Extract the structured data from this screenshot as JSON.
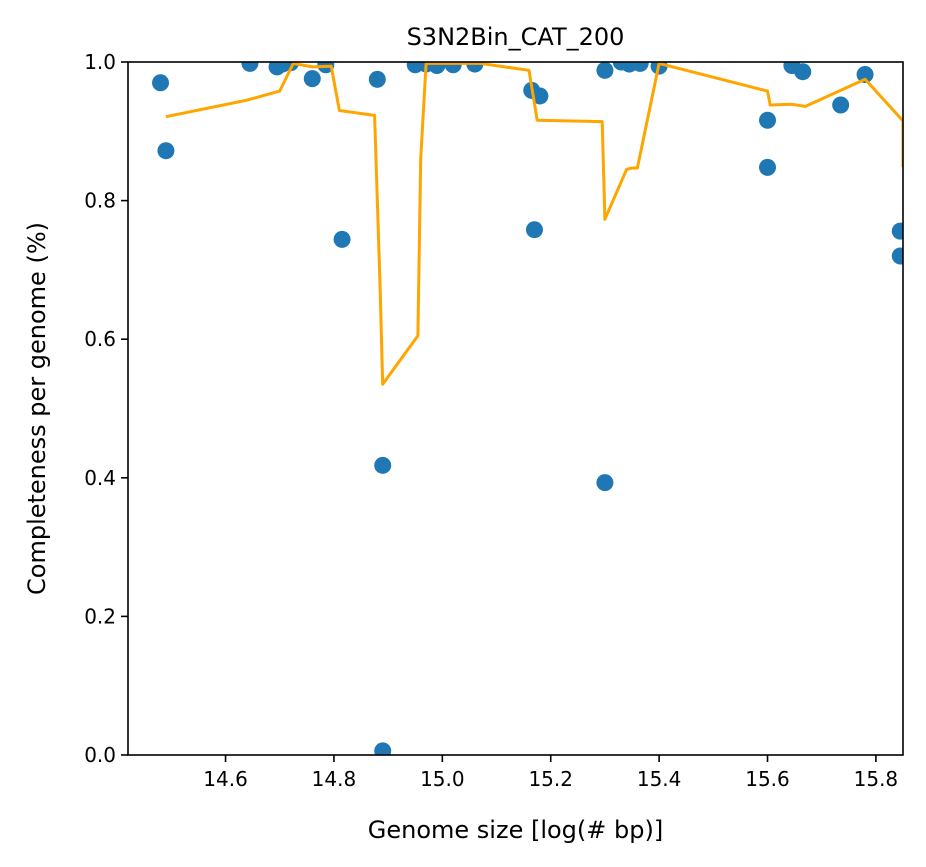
{
  "chart_data": {
    "type": "scatter",
    "title": "S3N2Bin_CAT_200",
    "xlabel": "Genome size [log(# bp)]",
    "ylabel": "Completeness per genome (%)",
    "xlim": [
      14.42,
      15.85
    ],
    "ylim": [
      0.0,
      1.0
    ],
    "x_ticks": [
      14.6,
      14.8,
      15.0,
      15.2,
      15.4,
      15.6,
      15.8
    ],
    "x_tick_labels": [
      "14.6",
      "14.8",
      "15.0",
      "15.2",
      "15.4",
      "15.6",
      "15.8"
    ],
    "y_ticks": [
      0.0,
      0.2,
      0.4,
      0.6,
      0.8,
      1.0
    ],
    "y_tick_labels": [
      "0.0",
      "0.2",
      "0.4",
      "0.6",
      "0.8",
      "1.0"
    ],
    "grid": false,
    "series": [
      {
        "type": "scatter",
        "color": "#1f77b4",
        "points": [
          [
            14.48,
            0.97
          ],
          [
            14.49,
            0.872
          ],
          [
            14.645,
            0.998
          ],
          [
            14.695,
            0.993
          ],
          [
            14.705,
            0.997
          ],
          [
            14.72,
            0.999
          ],
          [
            14.76,
            0.976
          ],
          [
            14.785,
            0.996
          ],
          [
            14.815,
            0.744
          ],
          [
            14.88,
            0.975
          ],
          [
            14.89,
            0.418
          ],
          [
            14.89,
            0.006
          ],
          [
            14.95,
            0.996
          ],
          [
            14.97,
            0.997
          ],
          [
            14.99,
            0.995
          ],
          [
            15.02,
            0.996
          ],
          [
            15.06,
            0.997
          ],
          [
            15.165,
            0.959
          ],
          [
            15.17,
            0.758
          ],
          [
            15.18,
            0.951
          ],
          [
            15.3,
            0.988
          ],
          [
            15.3,
            0.393
          ],
          [
            15.33,
            1.0
          ],
          [
            15.345,
            0.997
          ],
          [
            15.365,
            0.998
          ],
          [
            15.4,
            0.994
          ],
          [
            15.6,
            0.916
          ],
          [
            15.6,
            0.848
          ],
          [
            15.645,
            0.995
          ],
          [
            15.665,
            0.986
          ],
          [
            15.735,
            0.938
          ],
          [
            15.78,
            0.982
          ],
          [
            15.845,
            0.756
          ],
          [
            15.845,
            0.72
          ]
        ]
      },
      {
        "type": "line",
        "color": "#ffa500",
        "points": [
          [
            14.49,
            0.921
          ],
          [
            14.64,
            0.945
          ],
          [
            14.7,
            0.958
          ],
          [
            14.725,
            0.998
          ],
          [
            14.76,
            0.993
          ],
          [
            14.795,
            0.994
          ],
          [
            14.81,
            0.93
          ],
          [
            14.875,
            0.923
          ],
          [
            14.885,
            0.68
          ],
          [
            14.89,
            0.535
          ],
          [
            14.955,
            0.605
          ],
          [
            14.96,
            0.86
          ],
          [
            14.97,
            0.998
          ],
          [
            15.07,
            0.998
          ],
          [
            15.16,
            0.988
          ],
          [
            15.175,
            0.916
          ],
          [
            15.295,
            0.914
          ],
          [
            15.3,
            0.773
          ],
          [
            15.34,
            0.845
          ],
          [
            15.35,
            0.847
          ],
          [
            15.36,
            0.847
          ],
          [
            15.4,
            0.998
          ],
          [
            15.6,
            0.958
          ],
          [
            15.605,
            0.938
          ],
          [
            15.645,
            0.939
          ],
          [
            15.67,
            0.936
          ],
          [
            15.78,
            0.975
          ],
          [
            15.85,
            0.915
          ],
          [
            15.85,
            0.848
          ]
        ]
      }
    ]
  }
}
